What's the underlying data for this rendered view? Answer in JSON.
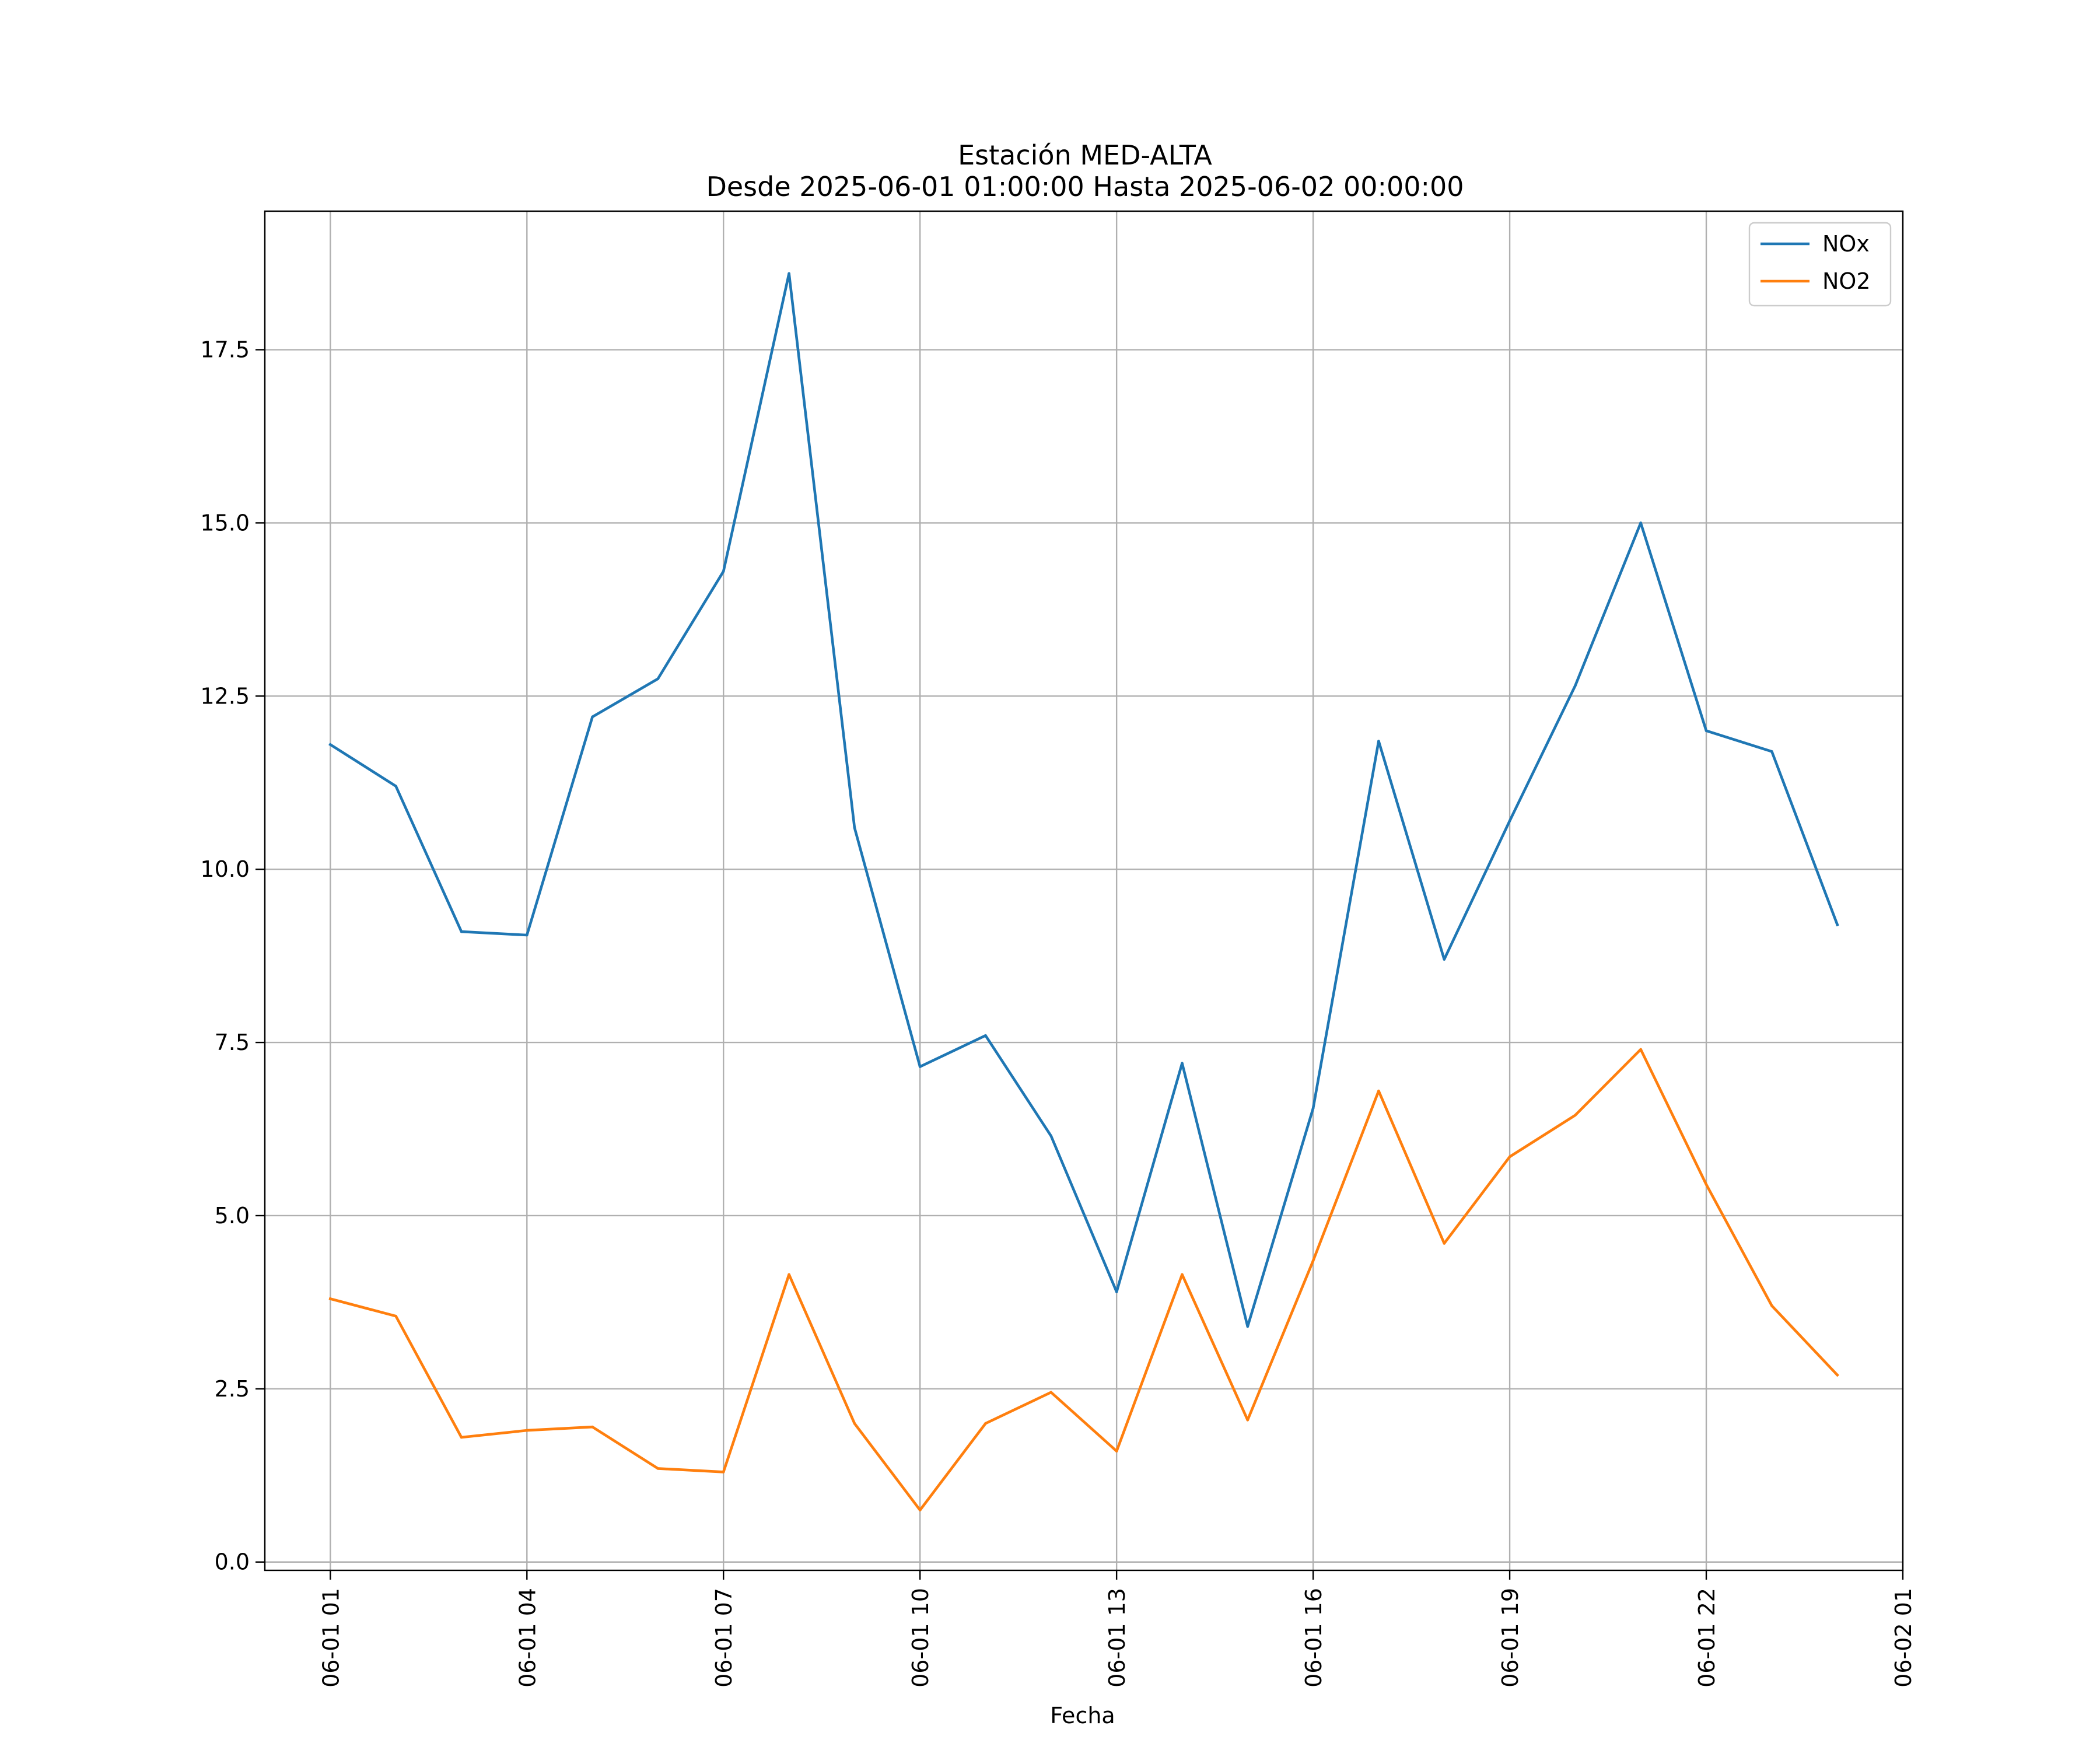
{
  "chart_data": {
    "type": "line",
    "title": "Estación MED-ALTA",
    "subtitle": "Desde 2025-06-01 01:00:00 Hasta 2025-06-02 00:00:00",
    "xlabel": "Fecha",
    "ylabel": "",
    "x": [
      "2025-06-01 01:00",
      "2025-06-01 02:00",
      "2025-06-01 03:00",
      "2025-06-01 04:00",
      "2025-06-01 05:00",
      "2025-06-01 06:00",
      "2025-06-01 07:00",
      "2025-06-01 08:00",
      "2025-06-01 09:00",
      "2025-06-01 10:00",
      "2025-06-01 11:00",
      "2025-06-01 12:00",
      "2025-06-01 13:00",
      "2025-06-01 14:00",
      "2025-06-01 15:00",
      "2025-06-01 16:00",
      "2025-06-01 17:00",
      "2025-06-01 18:00",
      "2025-06-01 19:00",
      "2025-06-01 20:00",
      "2025-06-01 21:00",
      "2025-06-01 22:00",
      "2025-06-01 23:00",
      "2025-06-02 00:00"
    ],
    "series": [
      {
        "name": "NOx",
        "color": "#1f77b4",
        "values": [
          11.8,
          11.2,
          9.1,
          9.05,
          12.2,
          12.75,
          14.3,
          18.6,
          10.6,
          7.15,
          7.6,
          6.15,
          3.9,
          7.2,
          3.4,
          6.55,
          11.85,
          8.7,
          10.7,
          12.65,
          15.0,
          12.0,
          11.7,
          9.2
        ]
      },
      {
        "name": "NO2",
        "color": "#ff7f0e",
        "values": [
          3.8,
          3.55,
          1.8,
          1.9,
          1.95,
          1.35,
          1.3,
          4.15,
          2.0,
          0.75,
          2.0,
          2.45,
          1.6,
          4.15,
          2.05,
          4.35,
          6.8,
          4.6,
          5.85,
          6.45,
          7.4,
          5.45,
          3.7,
          2.7
        ]
      }
    ],
    "x_ticks": [
      "06-01 01",
      "06-01 04",
      "06-01 07",
      "06-01 10",
      "06-01 13",
      "06-01 16",
      "06-01 19",
      "06-01 22",
      "06-02 01"
    ],
    "x_range": [
      "2025-06-01 00:00",
      "2025-06-02 01:00"
    ],
    "y_ticks": [
      "0.0",
      "2.5",
      "5.0",
      "7.5",
      "10.0",
      "12.5",
      "15.0",
      "17.5"
    ],
    "ylim": [
      -0.12,
      19.5
    ],
    "grid": true,
    "legend": "upper right"
  }
}
